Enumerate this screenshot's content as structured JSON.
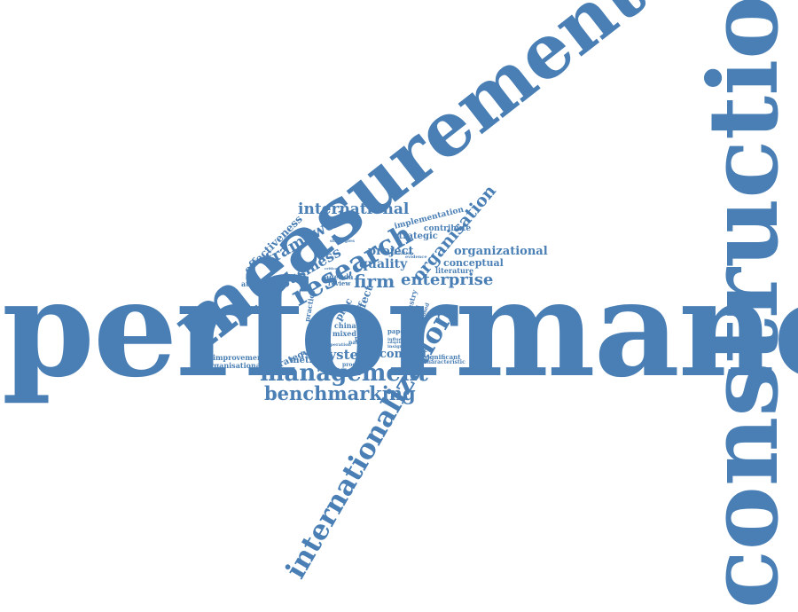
{
  "colors": {
    "text": "#4a7fb5"
  },
  "words": {
    "performance": "performance",
    "construction": "construction",
    "measurement": "measurement",
    "internationalization": "internationalization",
    "management": "management",
    "benchmarking": "benchmarking",
    "research": "research",
    "international": "international",
    "framework": "framework",
    "business": "business",
    "effectiveness": "effectiveness",
    "enterprise": "enterprise",
    "firm": "firm",
    "quality": "quality",
    "organisation": "organisation",
    "organizational": "organizational",
    "project": "project",
    "system": "system",
    "context": "context",
    "method": "method",
    "strategy": "strategy",
    "conceptual": "conceptual",
    "strategic": "strategic",
    "implementation": "implementation",
    "contribute": "contribute",
    "literature": "literature",
    "attribute": "attribute",
    "improvement": "improvement",
    "organisational": "organisational",
    "effect": "effect",
    "practice": "practice",
    "agenda": "agenda",
    "review": "review",
    "china": "china",
    "mixed": "mixed",
    "process": "process",
    "processes": "processes",
    "industry": "industry",
    "evaluating": "evaluating",
    "significant": "significant",
    "characteristic": "characteristic",
    "paper": "paper",
    "proposed": "proposed",
    "nature": "nature",
    "measure": "measure",
    "influence": "influence",
    "practitioner": "practitioner",
    "strategies": "strategies",
    "operation": "operation",
    "insignificant": "insignificant",
    "evaluation": "evaluation",
    "evidence": "evidence",
    "adoption": "adoption",
    "critical": "critical",
    "proc": "proc"
  }
}
